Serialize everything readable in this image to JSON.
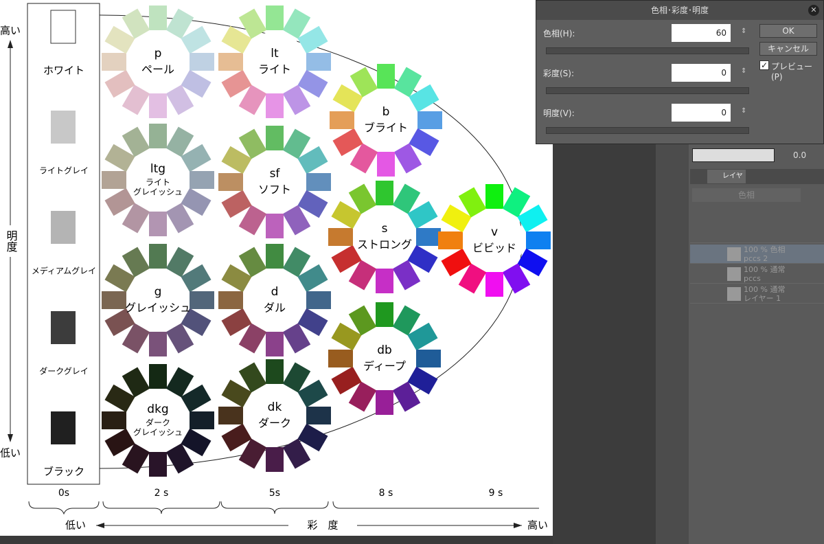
{
  "lightness_axis": {
    "high": "高い",
    "label": "明度",
    "low": "低い"
  },
  "achromatic": [
    "ホワイト",
    "ライトグレイ",
    "メディアムグレイ",
    "ダークグレイ",
    "ブラック"
  ],
  "tones": [
    {
      "code": "p",
      "name": [
        "ペール"
      ]
    },
    {
      "code": "lt",
      "name": [
        "ライト"
      ]
    },
    {
      "code": "b",
      "name": [
        "ブライト"
      ]
    },
    {
      "code": "ltg",
      "name": [
        "ライト",
        "グレイッシュ"
      ]
    },
    {
      "code": "sf",
      "name": [
        "ソフト"
      ]
    },
    {
      "code": "s",
      "name": [
        "ストロング"
      ]
    },
    {
      "code": "v",
      "name": [
        "ビビッド"
      ]
    },
    {
      "code": "g",
      "name": [
        "グレイッシュ"
      ]
    },
    {
      "code": "d",
      "name": [
        "ダル"
      ]
    },
    {
      "code": "db",
      "name": [
        "ディープ"
      ]
    },
    {
      "code": "dkg",
      "name": [
        "ダーク",
        "グレイッシュ"
      ]
    },
    {
      "code": "dk",
      "name": [
        "ダーク"
      ]
    }
  ],
  "saturation_columns": [
    "0s",
    "2 s",
    "5s",
    "8 s",
    "9 s"
  ],
  "saturation_axis": {
    "low": "低い",
    "label": "彩　度",
    "high": "高い"
  },
  "dialog": {
    "title": "色相･彩度･明度",
    "fields": [
      {
        "label": "色相(H):",
        "value": 60
      },
      {
        "label": "彩度(S):",
        "value": 0
      },
      {
        "label": "明度(V):",
        "value": 0
      }
    ],
    "buttons": [
      "OK",
      "キャンセル"
    ],
    "checkbox": "プレビュー(P)"
  },
  "layer_panel": {
    "opacity_value": "0.0",
    "tab": "レイヤー",
    "blend_mode": "色相",
    "layers": [
      {
        "mode": "100 % 色相",
        "name": "pccs 2"
      },
      {
        "mode": "100 % 通常",
        "name": "pccs"
      },
      {
        "mode": "100 % 通常",
        "name": "レイヤー 1"
      }
    ]
  }
}
